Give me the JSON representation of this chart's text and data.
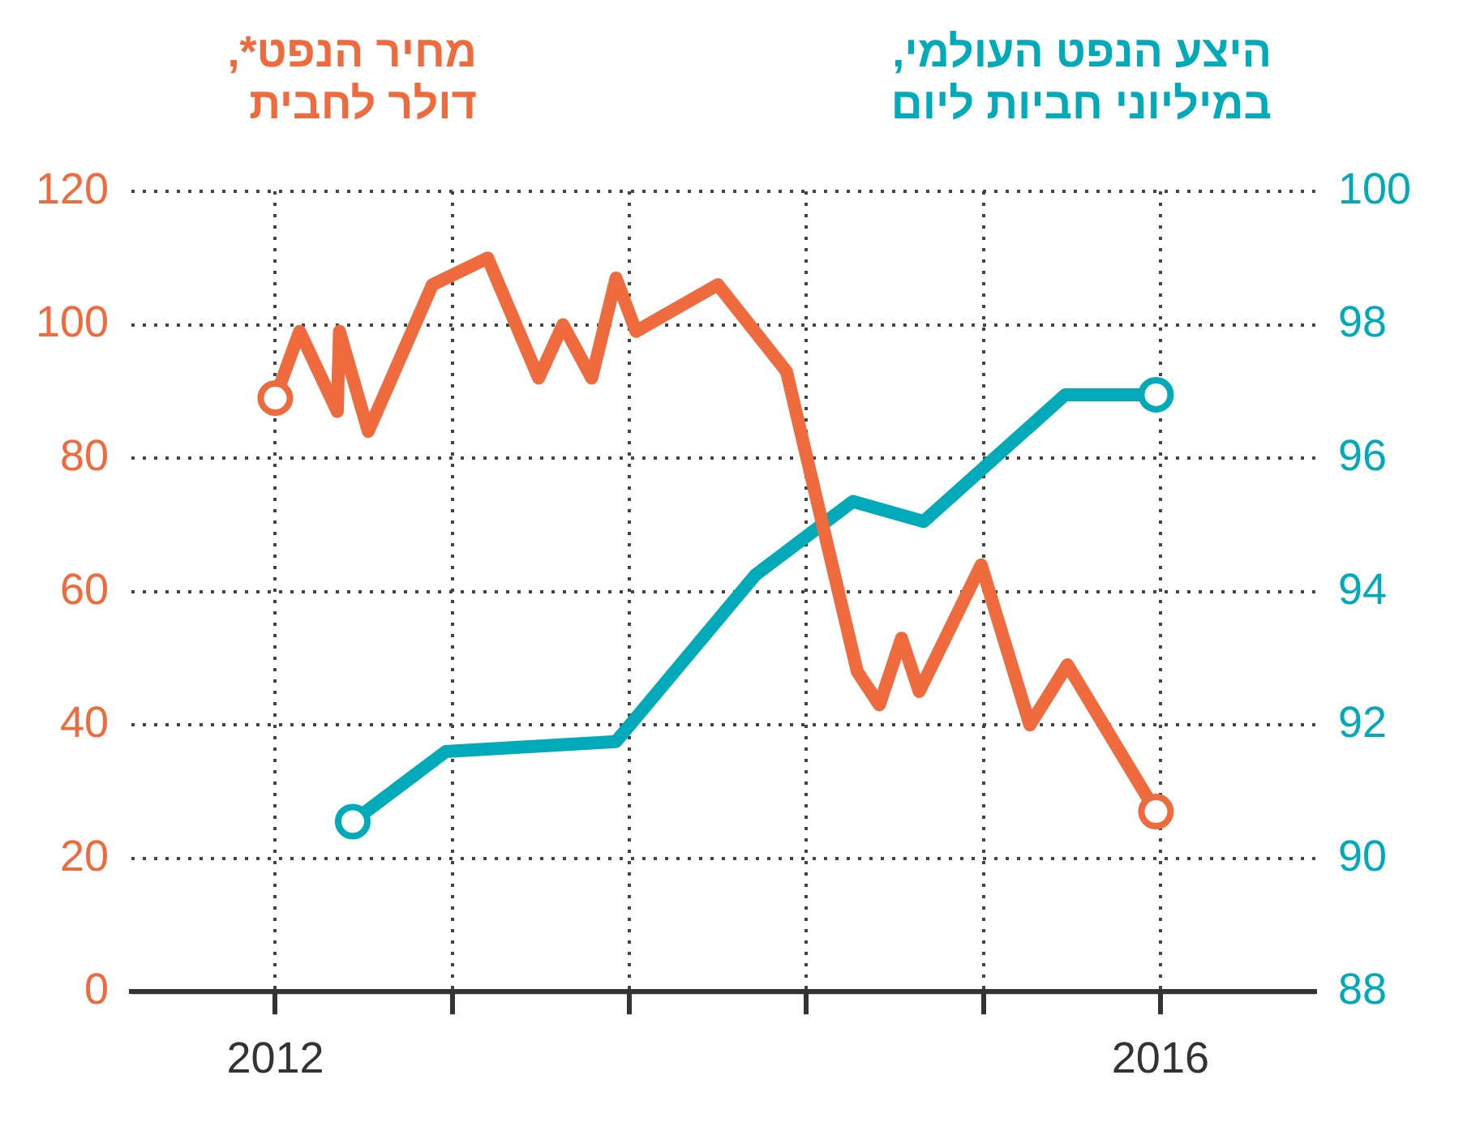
{
  "chart_data": {
    "type": "line",
    "ylabel": "מחיר הנפט*,\nדולר לחבית",
    "y2label": "היצע הנפט העולמי,\nבמיליוני חביות ליום",
    "series": [
      {
        "color": "#ef6a3c",
        "x": [
          2012.0,
          2012.11,
          2012.28,
          2012.29,
          2012.42,
          2012.71,
          2012.96,
          2013.19,
          2013.3,
          2013.43,
          2013.54,
          2013.63,
          2014.0,
          2014.31,
          2014.63,
          2014.73,
          2014.83,
          2014.91,
          2015.19,
          2015.41,
          2015.58,
          2015.98
        ],
        "values": [
          89,
          99,
          87,
          99,
          84,
          106,
          110,
          92,
          100,
          92,
          107,
          99,
          106,
          93,
          48,
          43,
          53,
          45,
          64,
          40,
          49,
          27
        ]
      },
      {
        "color": "#00aab8",
        "axis": "y2",
        "x": [
          2012.35,
          2012.77,
          2013.54,
          2014.17,
          2014.61,
          2014.93,
          2015.57,
          2015.98
        ],
        "values": [
          90.55,
          91.6,
          91.75,
          94.25,
          95.35,
          95.05,
          96.95,
          96.95
        ]
      }
    ],
    "xlim": [
      2011.35,
      2016.7
    ],
    "xticks": [
      2012,
      {
        "value": 2012.8,
        "label": null
      },
      {
        "value": 2013.6,
        "label": null
      },
      {
        "value": 2014.4,
        "label": null
      },
      {
        "value": 2015.2,
        "label": null
      },
      2016
    ],
    "ylim": [
      0,
      120
    ],
    "yticks": [
      0,
      20,
      40,
      60,
      80,
      100,
      120
    ],
    "y2lim": [
      88,
      100
    ],
    "y2ticks": [
      88,
      90,
      92,
      94,
      96,
      98,
      100
    ],
    "grid": true,
    "line_style": "solid",
    "legend": false
  }
}
